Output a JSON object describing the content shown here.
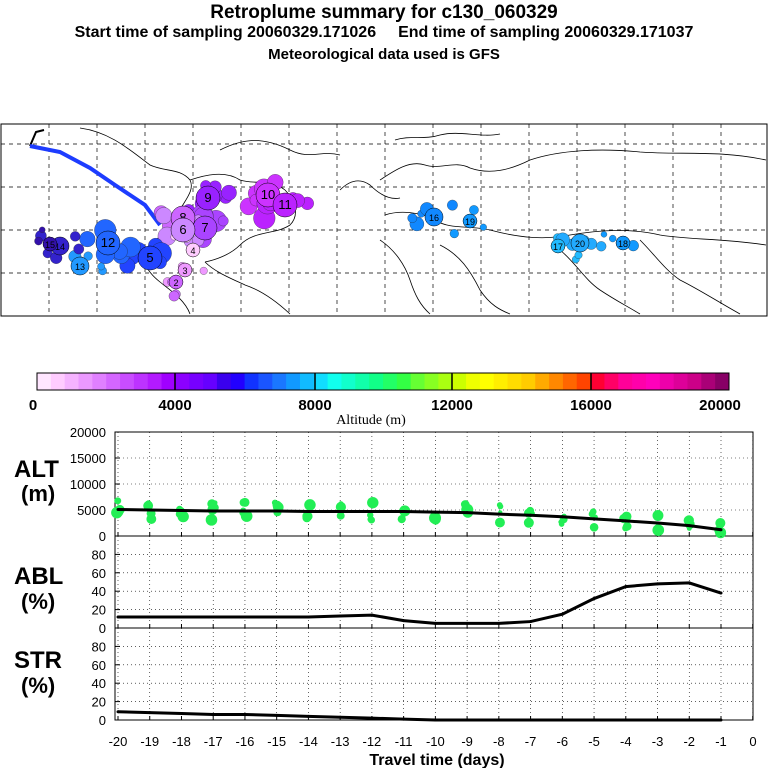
{
  "header": {
    "title": "Retroplume summary for c130_060329",
    "start_label": "Start time of sampling 20060329.171026",
    "end_label": "End time of sampling 20060329.171037",
    "met_label": "Meteorological data used is GFS"
  },
  "map": {
    "plume_points": [
      {
        "day": "10",
        "color": "#cc33ff",
        "size": "large"
      },
      {
        "day": "11",
        "color": "#bb22ff",
        "size": "large"
      },
      {
        "day": "9",
        "color": "#9922ff",
        "size": "large"
      },
      {
        "day": "8",
        "color": "#cc66ff",
        "size": "large"
      },
      {
        "day": "7",
        "color": "#aa44ff",
        "size": "large"
      },
      {
        "day": "6",
        "color": "#cc88ff",
        "size": "large"
      },
      {
        "day": "5",
        "color": "#2244ff",
        "size": "large"
      },
      {
        "day": "4",
        "color": "#ffccff",
        "size": "small"
      },
      {
        "day": "3",
        "color": "#ee99ff",
        "size": "small"
      },
      {
        "day": "2",
        "color": "#cc66ff",
        "size": "small"
      },
      {
        "day": "12",
        "color": "#2266ff",
        "size": "large"
      },
      {
        "day": "13",
        "color": "#2299ff",
        "size": "medium"
      },
      {
        "day": "14",
        "color": "#3322cc",
        "size": "medium"
      },
      {
        "day": "15",
        "color": "#3311aa",
        "size": "small"
      },
      {
        "day": "16",
        "color": "#1188ff",
        "size": "medium"
      },
      {
        "day": "17",
        "color": "#22bbff",
        "size": "small"
      },
      {
        "day": "18",
        "color": "#1199ff",
        "size": "small"
      },
      {
        "day": "19",
        "color": "#1199ff",
        "size": "small"
      },
      {
        "day": "20",
        "color": "#22aaff",
        "size": "medium"
      }
    ]
  },
  "colorbar": {
    "colors": [
      "#ffe6ff",
      "#ffccff",
      "#f5b3ff",
      "#eb99ff",
      "#e080ff",
      "#d466ff",
      "#c94dff",
      "#bd33ff",
      "#b31aff",
      "#a000ff",
      "#8c00ff",
      "#7700ff",
      "#6600ff",
      "#3a00ee",
      "#2200ff",
      "#1133ff",
      "#1a55ff",
      "#1a77ff",
      "#1199ff",
      "#11bbff",
      "#11ddff",
      "#11ffee",
      "#11ffcc",
      "#11ffaa",
      "#11ff88",
      "#22ff66",
      "#33ff44",
      "#66ff33",
      "#88ff22",
      "#aaff11",
      "#ccff00",
      "#eeff00",
      "#ffff00",
      "#ffee00",
      "#ffdd00",
      "#ffcc00",
      "#ffaa00",
      "#ff8800",
      "#ff6600",
      "#ff4400",
      "#ff0033",
      "#ff0066",
      "#ff0099",
      "#ff00aa",
      "#ff00bb",
      "#ee00aa",
      "#dd0099",
      "#cc0088",
      "#aa0077",
      "#880066"
    ],
    "tick_labels": [
      "0",
      "4000",
      "8000",
      "12000",
      "16000",
      "20000"
    ],
    "label": "Altitude (m)"
  },
  "chart_data": [
    {
      "type": "line",
      "title": "ALT (m)",
      "ylabel_lines": [
        "ALT",
        "(m)"
      ],
      "ylim": [
        0,
        20000
      ],
      "yticks": [
        "20000",
        "15000",
        "10000",
        "5000",
        "0"
      ],
      "x": [
        -20,
        -19,
        -18,
        -17,
        -16,
        -15,
        -14,
        -13,
        -12,
        -11,
        -10,
        -9,
        -8,
        -7,
        -6,
        -5,
        -4,
        -3,
        -2,
        -1
      ],
      "values": [
        5100,
        5000,
        4900,
        4800,
        4800,
        4800,
        4700,
        4700,
        4700,
        4700,
        4600,
        4500,
        4200,
        4000,
        3700,
        3300,
        2900,
        2500,
        2000,
        1200
      ],
      "scatter_color": "#22ee55"
    },
    {
      "type": "line",
      "title": "ABL (%)",
      "ylabel_lines": [
        "ABL",
        "(%)"
      ],
      "ylim": [
        0,
        100
      ],
      "yticks": [
        "80",
        "60",
        "40",
        "20",
        "0"
      ],
      "x": [
        -20,
        -19,
        -18,
        -17,
        -16,
        -15,
        -14,
        -13,
        -12,
        -11,
        -10,
        -9,
        -8,
        -7,
        -6,
        -5,
        -4,
        -3,
        -2,
        -1
      ],
      "values": [
        12,
        12,
        12,
        12,
        12,
        12,
        12,
        13,
        14,
        8,
        5,
        5,
        5,
        7,
        15,
        32,
        45,
        48,
        49,
        38
      ]
    },
    {
      "type": "line",
      "title": "STR (%)",
      "ylabel_lines": [
        "STR",
        "(%)"
      ],
      "ylim": [
        0,
        100
      ],
      "yticks": [
        "80",
        "60",
        "40",
        "20",
        "0"
      ],
      "x": [
        -20,
        -19,
        -18,
        -17,
        -16,
        -15,
        -14,
        -13,
        -12,
        -11,
        -10,
        -9,
        -8,
        -7,
        -6,
        -5,
        -4,
        -3,
        -2,
        -1
      ],
      "values": [
        9,
        8,
        7,
        6,
        6,
        5,
        4,
        3,
        2,
        1,
        0,
        0,
        0,
        0,
        0,
        0,
        0,
        0,
        0,
        0
      ]
    }
  ],
  "xaxis": {
    "ticks": [
      "-20",
      "-19",
      "-18",
      "-17",
      "-16",
      "-15",
      "-14",
      "-13",
      "-12",
      "-11",
      "-10",
      "-9",
      "-8",
      "-7",
      "-6",
      "-5",
      "-4",
      "-3",
      "-2",
      "-1",
      "0"
    ],
    "label": "Travel time (days)"
  }
}
